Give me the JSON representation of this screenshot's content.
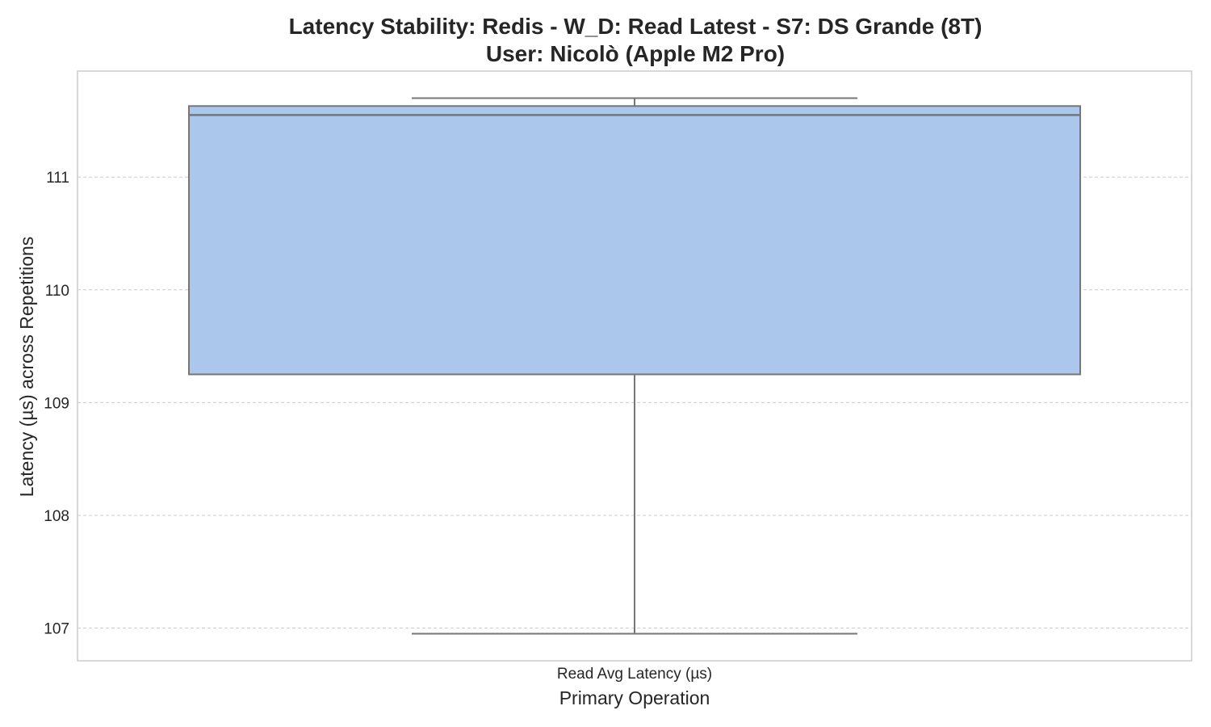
{
  "chart_data": {
    "type": "box",
    "title": "Latency Stability: Redis - W_D: Read Latest - S7: DS Grande (8T)",
    "subtitle": "User: Nicolò (Apple M2 Pro)",
    "xlabel": "Primary Operation",
    "ylabel": "Latency (µs) across Repetitions",
    "categories": [
      "Read Avg Latency (µs)"
    ],
    "boxes": [
      {
        "category": "Read Avg Latency (µs)",
        "min": 106.95,
        "q1": 109.25,
        "median": 111.55,
        "q3": 111.63,
        "max": 111.7
      }
    ],
    "ylim": [
      106.71,
      111.94
    ],
    "yticks": [
      107,
      108,
      109,
      110,
      111
    ],
    "grid": true,
    "colors": {
      "box_fill": "#abc8ec",
      "box_edge": "#767676",
      "grid": "#cccccc",
      "frame": "#cccccc"
    }
  }
}
